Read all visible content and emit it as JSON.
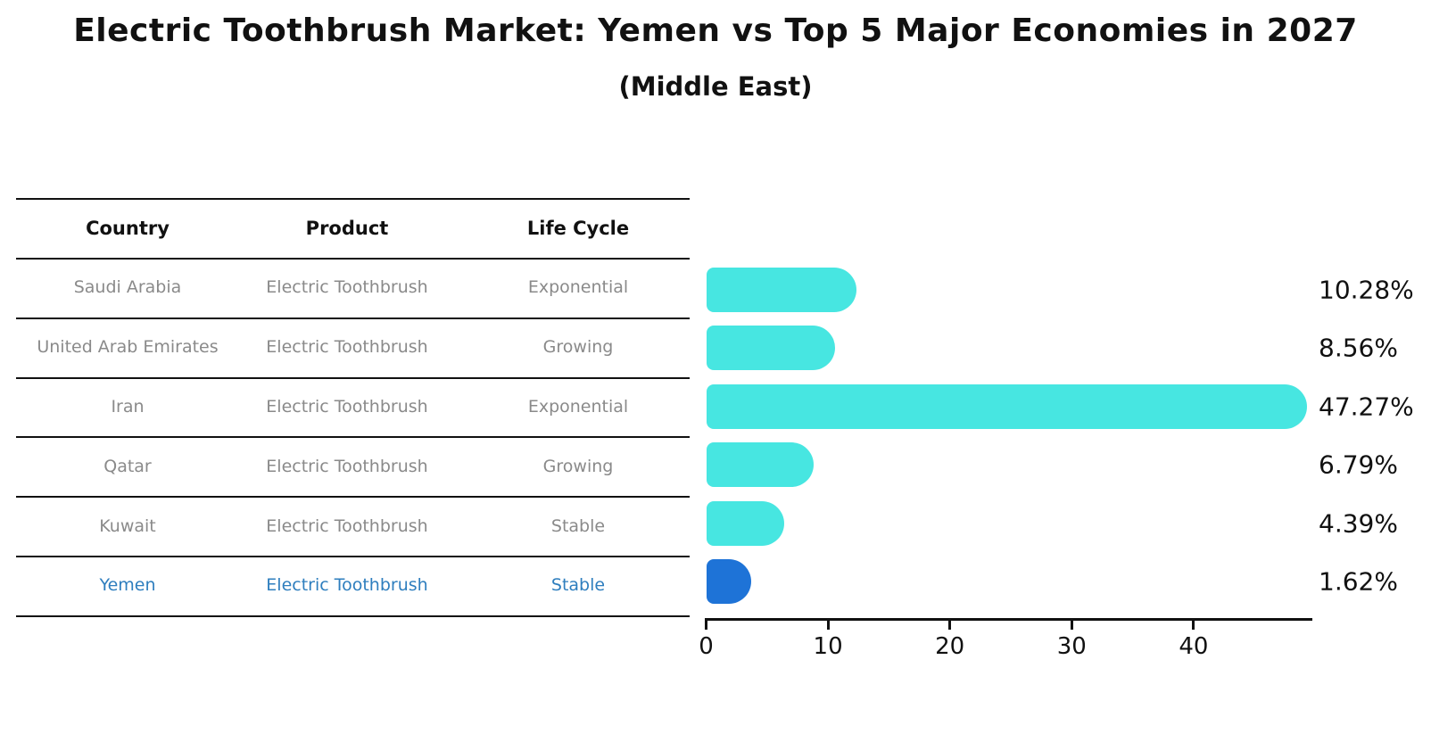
{
  "title": "Electric Toothbrush Market: Yemen vs Top 5 Major Economies in 2027",
  "subtitle": "(Middle East)",
  "colors": {
    "bar_default": "#47E6E1",
    "bar_highlight": "#1E73D7",
    "highlight_text": "#2E7EBE",
    "row_text": "#8A8A8A",
    "header_text": "#111111",
    "axis": "#111111"
  },
  "table": {
    "headers": [
      "Country",
      "Product",
      "Life Cycle"
    ],
    "rows": [
      {
        "country": "Saudi Arabia",
        "product": "Electric Toothbrush",
        "life_cycle": "Exponential",
        "highlight": false
      },
      {
        "country": "United Arab Emirates",
        "product": "Electric Toothbrush",
        "life_cycle": "Growing",
        "highlight": false
      },
      {
        "country": "Iran",
        "product": "Electric Toothbrush",
        "life_cycle": "Exponential",
        "highlight": false
      },
      {
        "country": "Qatar",
        "product": "Electric Toothbrush",
        "life_cycle": "Growing",
        "highlight": false
      },
      {
        "country": "Kuwait",
        "product": "Electric Toothbrush",
        "life_cycle": "Stable",
        "highlight": false
      },
      {
        "country": "Yemen",
        "product": "Electric Toothbrush",
        "life_cycle": "Stable",
        "highlight": true
      }
    ]
  },
  "chart_data": {
    "type": "bar",
    "orientation": "horizontal",
    "title": "Electric Toothbrush Market: Yemen vs Top 5 Major Economies in 2027",
    "subtitle": "(Middle East)",
    "categories": [
      "Saudi Arabia",
      "United Arab Emirates",
      "Iran",
      "Qatar",
      "Kuwait",
      "Yemen"
    ],
    "values": [
      10.28,
      8.56,
      47.27,
      6.79,
      4.39,
      1.62
    ],
    "value_labels": [
      "10.28%",
      "8.56%",
      "47.27%",
      "6.79%",
      "4.39%",
      "1.62%"
    ],
    "x_ticks": [
      0,
      10,
      20,
      30,
      40
    ],
    "xlim": [
      0,
      50
    ],
    "xlabel": "",
    "ylabel": "",
    "grid": false,
    "legend": null,
    "highlight_category": "Yemen"
  }
}
